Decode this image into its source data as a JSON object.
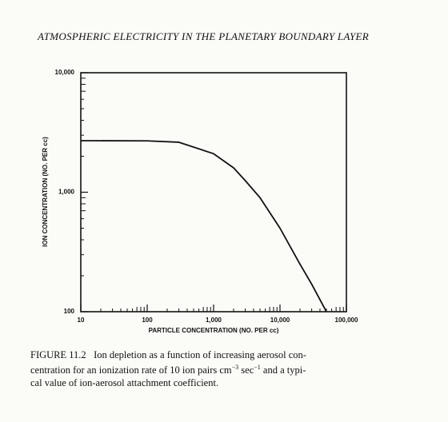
{
  "header": "ATMOSPHERIC ELECTRICITY IN THE PLANETARY BOUNDARY LAYER",
  "chart_data": {
    "type": "line",
    "x_label": "PARTICLE CONCENTRATION (NO. PER cc)",
    "y_label": "ION CONCENTRATION (NO. PER cc)",
    "x": [
      10,
      100,
      300,
      1000,
      2000,
      3000,
      5000,
      10000,
      20000,
      30000,
      50000
    ],
    "series": [
      {
        "color": "#111111",
        "values": [
          2700,
          2690,
          2620,
          2100,
          1600,
          1250,
          900,
          500,
          250,
          170,
          100
        ]
      }
    ],
    "log_x": true,
    "log_y": true,
    "xlim": [
      10,
      100000
    ],
    "xticks": [
      10,
      100,
      {
        "value": 1000,
        "label": "1,000"
      },
      {
        "value": 10000,
        "label": "10,000"
      },
      {
        "value": 100000,
        "label": "100,000"
      }
    ],
    "ylim": [
      100,
      10000
    ],
    "yticks": [
      100,
      {
        "value": 1000,
        "label": "1,000"
      },
      {
        "value": 10000,
        "label": "10,000"
      }
    ]
  },
  "caption": {
    "label": "FIGURE 11.2",
    "line1": "Ion depletion as a function of increasing aerosol con-",
    "line2": [
      "centration for an ionization rate of 10 ion pairs cm",
      "−3",
      "sec",
      "−1",
      "and a typi-"
    ],
    "line3": "cal value of ion-aerosol attachment coefficient."
  }
}
